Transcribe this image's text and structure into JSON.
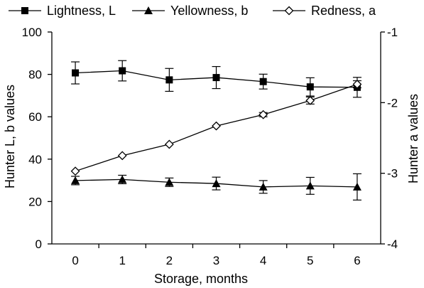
{
  "chart_data": {
    "type": "line",
    "x": [
      0,
      1,
      2,
      3,
      4,
      5,
      6
    ],
    "xlabel": "Storage, months",
    "ylabel": "Hunter L, b values",
    "y2label": "Hunter a values",
    "xlim": [
      -0.5,
      6.5
    ],
    "ylim": [
      0,
      100
    ],
    "y2lim": [
      -4,
      -1
    ],
    "yticks": [
      0,
      20,
      40,
      60,
      80,
      100
    ],
    "y2ticks": [
      -4,
      -3,
      -2,
      -1
    ],
    "xticks": [
      0,
      1,
      2,
      3,
      4,
      5,
      6
    ],
    "grid": false,
    "legend": "top",
    "series": [
      {
        "name": "Lightness, L",
        "axis": "left",
        "marker": "filled-square",
        "values": [
          80.7,
          81.7,
          77.4,
          78.5,
          76.6,
          74.1,
          73.9
        ],
        "err": [
          5.2,
          4.8,
          5.4,
          5.2,
          3.5,
          4.3,
          4.7
        ]
      },
      {
        "name": "Yellowness, b",
        "axis": "left",
        "marker": "filled-triangle",
        "values": [
          29.9,
          30.4,
          29.1,
          28.5,
          26.9,
          27.4,
          26.9
        ],
        "err": [
          2.0,
          2.0,
          2.0,
          3.0,
          3.0,
          4.0,
          6.2
        ]
      },
      {
        "name": "Redness, a",
        "axis": "right",
        "marker": "open-diamond",
        "values": [
          -2.97,
          -2.75,
          -2.59,
          -2.33,
          -2.17,
          -1.97,
          -1.74
        ],
        "err": [
          0.0,
          0.0,
          0.0,
          0.0,
          0.03,
          0.05,
          0.05
        ]
      }
    ]
  }
}
